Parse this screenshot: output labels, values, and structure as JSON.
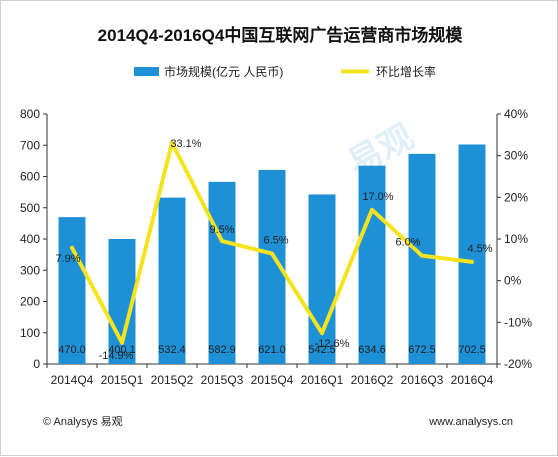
{
  "chart_data": {
    "type": "bar",
    "title": "2014Q4-2016Q4中国互联网广告运营商市场规模",
    "categories": [
      "2014Q4",
      "2015Q1",
      "2015Q2",
      "2015Q3",
      "2015Q4",
      "2016Q1",
      "2016Q2",
      "2016Q3",
      "2016Q4"
    ],
    "series": [
      {
        "name": "市场规模(亿元 人民币)",
        "type": "bar",
        "axis": "left",
        "color": "#1e90d6",
        "values": [
          470.0,
          400.1,
          532.4,
          582.9,
          621.0,
          542.5,
          634.6,
          672.5,
          702.5
        ],
        "labels": [
          "470.0",
          "400.1",
          "532.4",
          "582.9",
          "621.0",
          "542.5",
          "634.6",
          "672.5",
          "702.5"
        ]
      },
      {
        "name": "环比增长率",
        "type": "line",
        "axis": "right",
        "color": "#f5e31e",
        "values": [
          7.9,
          -14.9,
          33.1,
          9.5,
          6.5,
          -12.6,
          17.0,
          6.0,
          4.5
        ],
        "labels": [
          "7.9%",
          "-14.9%",
          "33.1%",
          "9.5%",
          "6.5%",
          "-12.6%",
          "17.0%",
          "6.0%",
          "4.5%"
        ]
      }
    ],
    "y_left": {
      "min": 0,
      "max": 800,
      "ticks": [
        "0",
        "100",
        "200",
        "300",
        "400",
        "500",
        "600",
        "700",
        "800"
      ]
    },
    "y_right": {
      "min": -20,
      "max": 40,
      "ticks": [
        "-20%",
        "-10%",
        "0%",
        "10%",
        "20%",
        "30%",
        "40%"
      ]
    },
    "legend_position": "top",
    "grid": false
  },
  "footer": {
    "left": "© Analysys 易观",
    "right": "www.analysys.cn"
  },
  "watermark": {
    "text": "易观"
  }
}
